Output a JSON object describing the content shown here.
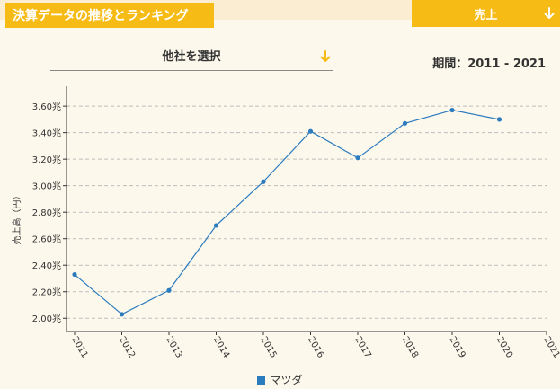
{
  "header": {
    "title": "決算データの推移とランキング",
    "metric_select": {
      "value": "売上"
    }
  },
  "company_select": {
    "placeholder": "他社を選択"
  },
  "period": {
    "label": "期間：2011 - 2021"
  },
  "colors": {
    "accent": "#f7bb16",
    "series": "#2b7bbf",
    "background": "#fdf8ec"
  },
  "chart_data": {
    "type": "line",
    "ylabel": "売上高（円）",
    "xlabel": "",
    "ylim": [
      1.9,
      3.75
    ],
    "x": [
      "2011",
      "2012",
      "2013",
      "2014",
      "2015",
      "2016",
      "2017",
      "2018",
      "2019",
      "2020",
      "2021"
    ],
    "yticks": [
      {
        "value": 2.0,
        "label": "2.00兆"
      },
      {
        "value": 2.2,
        "label": "2.20兆"
      },
      {
        "value": 2.4,
        "label": "2.40兆"
      },
      {
        "value": 2.6,
        "label": "2.60兆"
      },
      {
        "value": 2.8,
        "label": "2.80兆"
      },
      {
        "value": 3.0,
        "label": "3.00兆"
      },
      {
        "value": 3.2,
        "label": "3.20兆"
      },
      {
        "value": 3.4,
        "label": "3.40兆"
      },
      {
        "value": 3.6,
        "label": "3.60兆"
      }
    ],
    "grid": true,
    "legend": "bottom",
    "series": [
      {
        "name": "マツダ",
        "values": [
          2.33,
          2.03,
          2.21,
          2.7,
          3.03,
          3.41,
          3.21,
          3.47,
          3.57,
          3.5,
          null
        ]
      }
    ]
  }
}
